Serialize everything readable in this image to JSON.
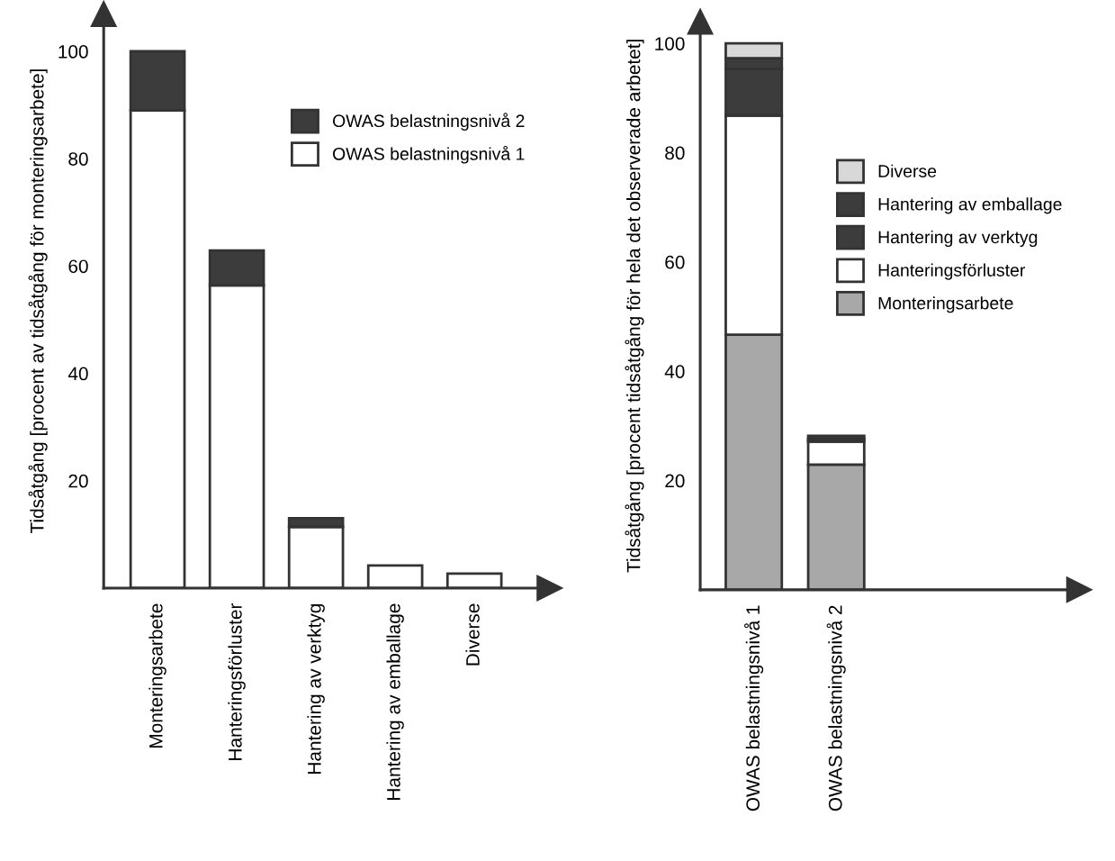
{
  "chart_data": [
    {
      "type": "bar",
      "stacked": true,
      "ylabel": "Tidsåtgång [procent av tidsåtgång för monteringsarbete]",
      "categories": [
        "Monteringsarbete",
        "Hanteringsförluster",
        "Hantering av verktyg",
        "Hantering av emballage",
        "Diverse"
      ],
      "ylim": [
        0,
        107
      ],
      "yticks": [
        20,
        40,
        60,
        80,
        100
      ],
      "legend": "top right",
      "grid": false,
      "series": [
        {
          "name": "OWAS belastningsnivå 1",
          "color": "#ffffff",
          "values": [
            89,
            56.4,
            11.4,
            4.2,
            2.7
          ]
        },
        {
          "name": "OWAS belastningsnivå 2",
          "color": "#3c3c3c",
          "values": [
            11,
            6.5,
            1.6,
            null,
            null
          ]
        }
      ]
    },
    {
      "type": "bar",
      "stacked": true,
      "ylabel": "Tidsåtgång [procent tidsåtgång för hela det observerade arbetet]",
      "categories": [
        "OWAS belastningsnivå 1",
        "OWAS belastningsnivå 2"
      ],
      "ylim": [
        0,
        104
      ],
      "yticks": [
        20,
        40,
        60,
        80,
        100
      ],
      "legend": "right",
      "grid": false,
      "series": [
        {
          "name": "Monteringsarbete",
          "color": "#a8a8a8",
          "values": [
            46.7,
            22.9
          ]
        },
        {
          "name": "Hanteringsförluster",
          "color": "#ffffff",
          "values": [
            40.1,
            4.2
          ]
        },
        {
          "name": "Hantering av verktyg",
          "color": "#3c3c3c",
          "values": [
            8.5,
            0.5
          ]
        },
        {
          "name": "Hantering av emballage",
          "color": "#3c3c3c",
          "values": [
            2.0,
            0.6
          ]
        },
        {
          "name": "Diverse",
          "color": "#d8d8d8",
          "values": [
            2.7,
            null
          ]
        }
      ]
    }
  ]
}
